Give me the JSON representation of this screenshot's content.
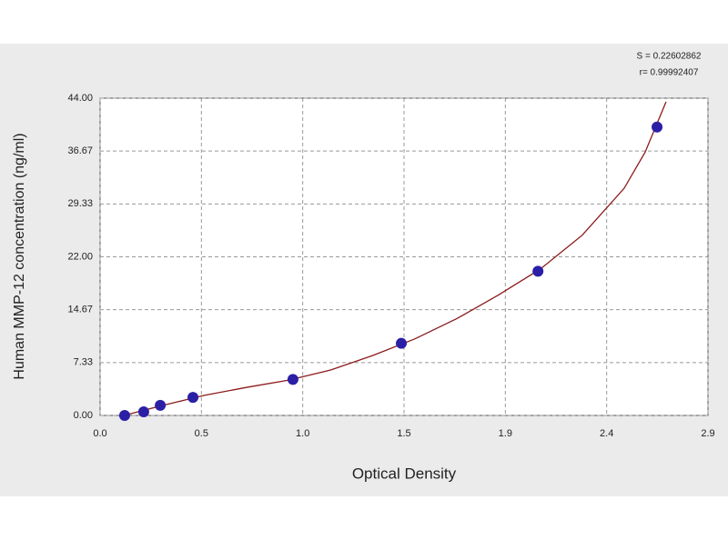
{
  "chart_data": {
    "type": "scatter",
    "x_label": "Optical Density",
    "y_label": "Human MMP-12 concentration (ng/ml)",
    "annotations": [
      "S = 0.22602862",
      "r= 0.99992407"
    ],
    "xlim": [
      0,
      2.9
    ],
    "ylim": [
      0,
      44
    ],
    "xticks": [
      {
        "value": 0,
        "label": "0.0"
      },
      {
        "value": 0.48333,
        "label": "0.5"
      },
      {
        "value": 0.96667,
        "label": "1.0"
      },
      {
        "value": 1.45,
        "label": "1.5"
      },
      {
        "value": 1.93333,
        "label": "1.9"
      },
      {
        "value": 2.41667,
        "label": "2.4"
      },
      {
        "value": 2.9,
        "label": "2.9"
      }
    ],
    "yticks": [
      {
        "value": 0,
        "label": "0.00"
      },
      {
        "value": 7.3333,
        "label": "7.33"
      },
      {
        "value": 14.6667,
        "label": "14.67"
      },
      {
        "value": 22,
        "label": "22.00"
      },
      {
        "value": 29.3333,
        "label": "29.33"
      },
      {
        "value": 36.6667,
        "label": "36.67"
      },
      {
        "value": 44,
        "label": "44.00"
      }
    ],
    "grid": true,
    "points": {
      "color": "#2b1fa6",
      "x": [
        0.117,
        0.208,
        0.287,
        0.443,
        0.92,
        1.437,
        2.089,
        2.657
      ],
      "values": [
        0,
        0.5,
        1.4,
        2.5,
        5,
        10,
        20,
        40
      ]
    },
    "fit": {
      "color": "#8b1a1a",
      "x": [
        0.1,
        0.3,
        0.5,
        0.7,
        0.9,
        1.1,
        1.3,
        1.5,
        1.7,
        1.9,
        2.1,
        2.3,
        2.5,
        2.6,
        2.7
      ],
      "values": [
        -0.1,
        1.4,
        2.8,
        3.9,
        4.9,
        6.3,
        8.3,
        10.6,
        13.4,
        16.7,
        20.3,
        25,
        31.5,
        36.5,
        43.5
      ]
    }
  }
}
